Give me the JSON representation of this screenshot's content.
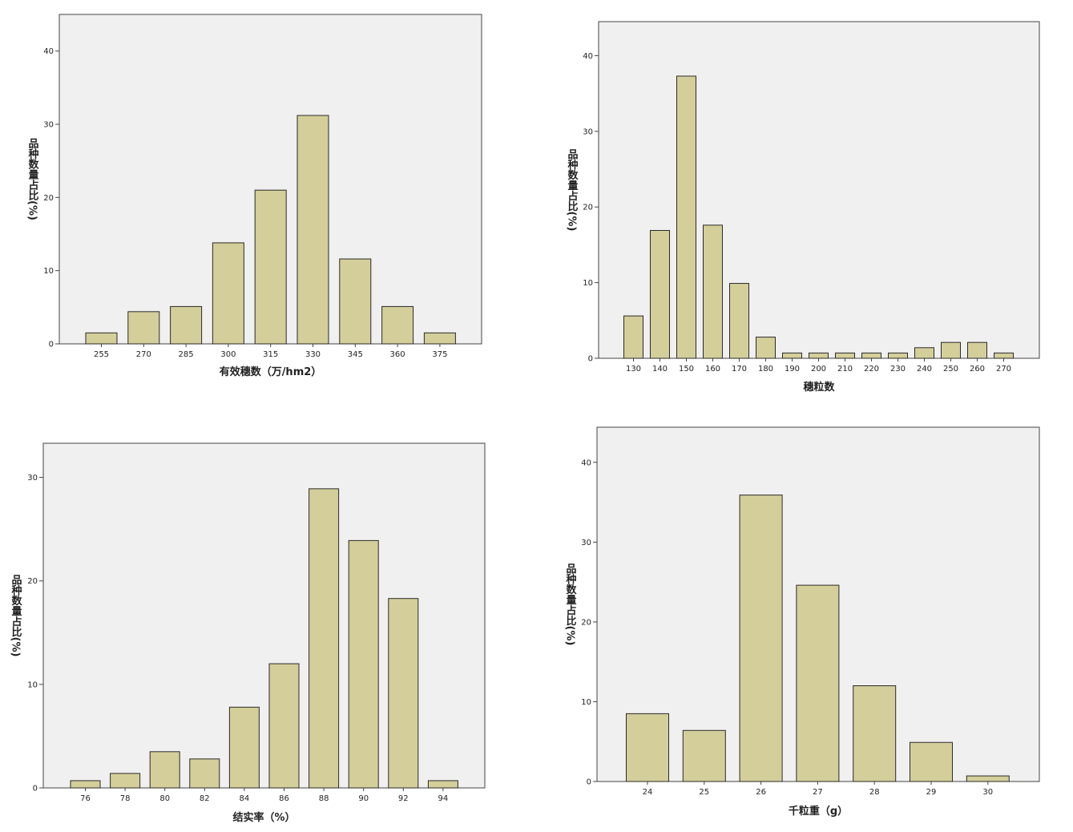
{
  "colors": {
    "bar_fill": "#d4ce9a",
    "bar_stroke": "#2a2a2a",
    "plot_bg": "#f0f0f0",
    "frame": "#444444"
  },
  "chart_data": [
    {
      "type": "bar",
      "xlabel": "有效穗数（万/hm2）",
      "ylabel": "品种数量占比(%)",
      "categories": [
        "255",
        "270",
        "285",
        "300",
        "315",
        "330",
        "345",
        "360",
        "375"
      ],
      "values": [
        1.5,
        4.4,
        5.1,
        13.8,
        21.0,
        31.2,
        11.6,
        5.1,
        1.5
      ],
      "yticks": [
        0,
        10,
        20,
        30,
        40
      ],
      "ylim": [
        0,
        45
      ],
      "grid": false
    },
    {
      "type": "bar",
      "xlabel": "穗粒数",
      "ylabel": "品种数量占比(%)",
      "categories": [
        "130",
        "140",
        "150",
        "160",
        "170",
        "180",
        "190",
        "200",
        "210",
        "220",
        "230",
        "240",
        "250",
        "260",
        "270"
      ],
      "values": [
        5.6,
        16.9,
        37.3,
        17.6,
        9.9,
        2.8,
        0.7,
        0.7,
        0.7,
        0.7,
        0.7,
        1.4,
        2.1,
        2.1,
        0.7
      ],
      "yticks": [
        0,
        10,
        20,
        30,
        40
      ],
      "ylim": [
        0,
        44.5
      ],
      "grid": false
    },
    {
      "type": "bar",
      "xlabel": "结实率（%）",
      "ylabel": "品种数量占比(%)",
      "categories": [
        "76",
        "78",
        "80",
        "82",
        "84",
        "86",
        "88",
        "90",
        "92",
        "94"
      ],
      "values": [
        0.7,
        1.4,
        3.5,
        2.8,
        7.8,
        12.0,
        28.9,
        23.9,
        18.3,
        0.7
      ],
      "yticks": [
        0,
        10,
        20,
        30
      ],
      "ylim": [
        0,
        33.3
      ],
      "grid": false
    },
    {
      "type": "bar",
      "xlabel": "千粒重（g）",
      "ylabel": "品种数量占比(%)",
      "categories": [
        "24",
        "25",
        "26",
        "27",
        "28",
        "29",
        "30"
      ],
      "values": [
        8.5,
        6.4,
        35.9,
        24.6,
        12.0,
        4.9,
        0.7
      ],
      "yticks": [
        0,
        10,
        20,
        30,
        40
      ],
      "ylim": [
        0,
        44.4
      ],
      "grid": false
    }
  ]
}
